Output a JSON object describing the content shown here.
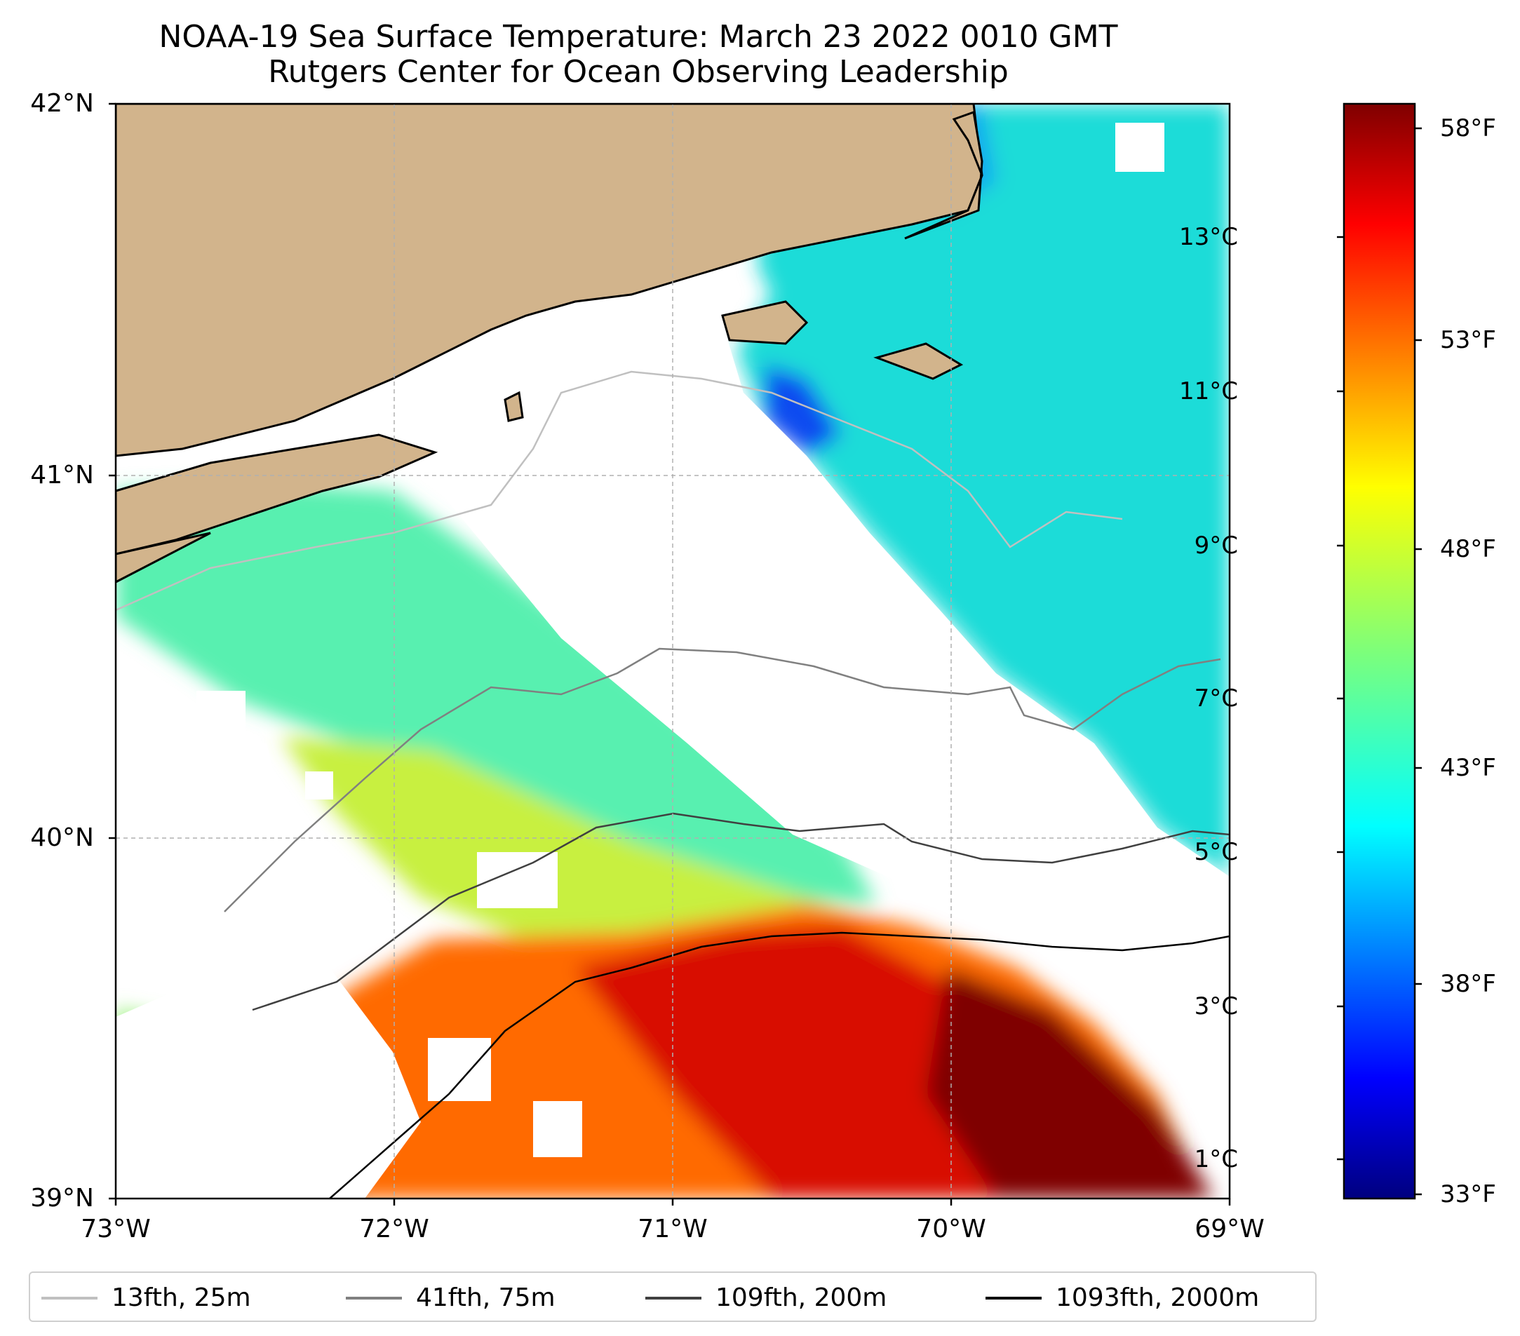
{
  "title": {
    "line1": "NOAA-19 Sea Surface Temperature: March 23 2022 0010 GMT",
    "line2": "Rutgers Center for Ocean Observing Leadership"
  },
  "axes": {
    "lat_labels": [
      "42°N",
      "41°N",
      "40°N",
      "39°N"
    ],
    "lon_labels": [
      "73°W",
      "72°W",
      "71°W",
      "70°W",
      "69°W"
    ],
    "lat_range": [
      39,
      42
    ],
    "lon_range": [
      -73,
      -69
    ]
  },
  "colorbar": {
    "celsius_labels": [
      "13°C",
      "11°C",
      "9°C",
      "7°C",
      "5°C",
      "3°C",
      "1°C"
    ],
    "fahrenheit_labels": [
      "58°F",
      "53°F",
      "48°F",
      "43°F",
      "38°F",
      "33°F"
    ],
    "colormap": "jet",
    "range_f": [
      32.5,
      59
    ]
  },
  "legend": {
    "items": [
      {
        "label": "13fth, 25m",
        "color": "#c0c0c0"
      },
      {
        "label": "41fth, 75m",
        "color": "#808080"
      },
      {
        "label": "109fth, 200m",
        "color": "#404040"
      },
      {
        "label": "1093fth, 2000m",
        "color": "#000000"
      }
    ]
  },
  "colors": {
    "land": "#d2b48c",
    "cloud_gap": "#ffffff"
  }
}
